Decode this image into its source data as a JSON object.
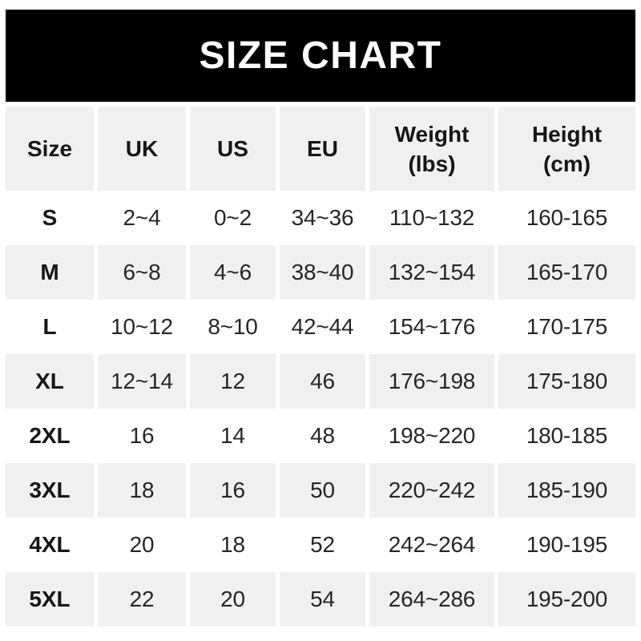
{
  "banner": {
    "title": "SIZE CHART"
  },
  "table": {
    "columns": [
      {
        "label": "Size"
      },
      {
        "label": "UK"
      },
      {
        "label": "US"
      },
      {
        "label": "EU"
      },
      {
        "label": "Weight",
        "unit": "(lbs)"
      },
      {
        "label": "Height",
        "unit": "(cm)"
      }
    ],
    "rows": [
      {
        "size": "S",
        "uk": "2~4",
        "us": "0~2",
        "eu": "34~36",
        "weight": "110~132",
        "height": "160-165"
      },
      {
        "size": "M",
        "uk": "6~8",
        "us": "4~6",
        "eu": "38~40",
        "weight": "132~154",
        "height": "165-170"
      },
      {
        "size": "L",
        "uk": "10~12",
        "us": "8~10",
        "eu": "42~44",
        "weight": "154~176",
        "height": "170-175"
      },
      {
        "size": "XL",
        "uk": "12~14",
        "us": "12",
        "eu": "46",
        "weight": "176~198",
        "height": "175-180"
      },
      {
        "size": "2XL",
        "uk": "16",
        "us": "14",
        "eu": "48",
        "weight": "198~220",
        "height": "180-185"
      },
      {
        "size": "3XL",
        "uk": "18",
        "us": "16",
        "eu": "50",
        "weight": "220~242",
        "height": "185-190"
      },
      {
        "size": "4XL",
        "uk": "20",
        "us": "18",
        "eu": "52",
        "weight": "242~264",
        "height": "190-195"
      },
      {
        "size": "5XL",
        "uk": "22",
        "us": "20",
        "eu": "54",
        "weight": "264~286",
        "height": "195-200"
      }
    ]
  },
  "colors": {
    "banner_bg": "#000000",
    "banner_text": "#ffffff",
    "row_alt_bg": "#f0f0f0",
    "row_bg": "#ffffff",
    "header_text": "#161616",
    "data_text": "#262626"
  },
  "chart_data": {
    "type": "table",
    "title": "SIZE CHART",
    "columns": [
      "Size",
      "UK",
      "US",
      "EU",
      "Weight (lbs)",
      "Height (cm)"
    ],
    "rows": [
      [
        "S",
        "2~4",
        "0~2",
        "34~36",
        "110~132",
        "160-165"
      ],
      [
        "M",
        "6~8",
        "4~6",
        "38~40",
        "132~154",
        "165-170"
      ],
      [
        "L",
        "10~12",
        "8~10",
        "42~44",
        "154~176",
        "170-175"
      ],
      [
        "XL",
        "12~14",
        "12",
        "46",
        "176~198",
        "175-180"
      ],
      [
        "2XL",
        "16",
        "14",
        "48",
        "198~220",
        "180-185"
      ],
      [
        "3XL",
        "18",
        "16",
        "50",
        "220~242",
        "185-190"
      ],
      [
        "4XL",
        "20",
        "18",
        "52",
        "242~264",
        "190-195"
      ],
      [
        "5XL",
        "22",
        "20",
        "54",
        "264~286",
        "195-200"
      ]
    ],
    "layout": {
      "header_background": "#f0f0f0",
      "alternating_rows": true,
      "alt_row_background": "#f0f0f0",
      "range_separator_sizes": "~",
      "range_separator_height": "-"
    }
  }
}
